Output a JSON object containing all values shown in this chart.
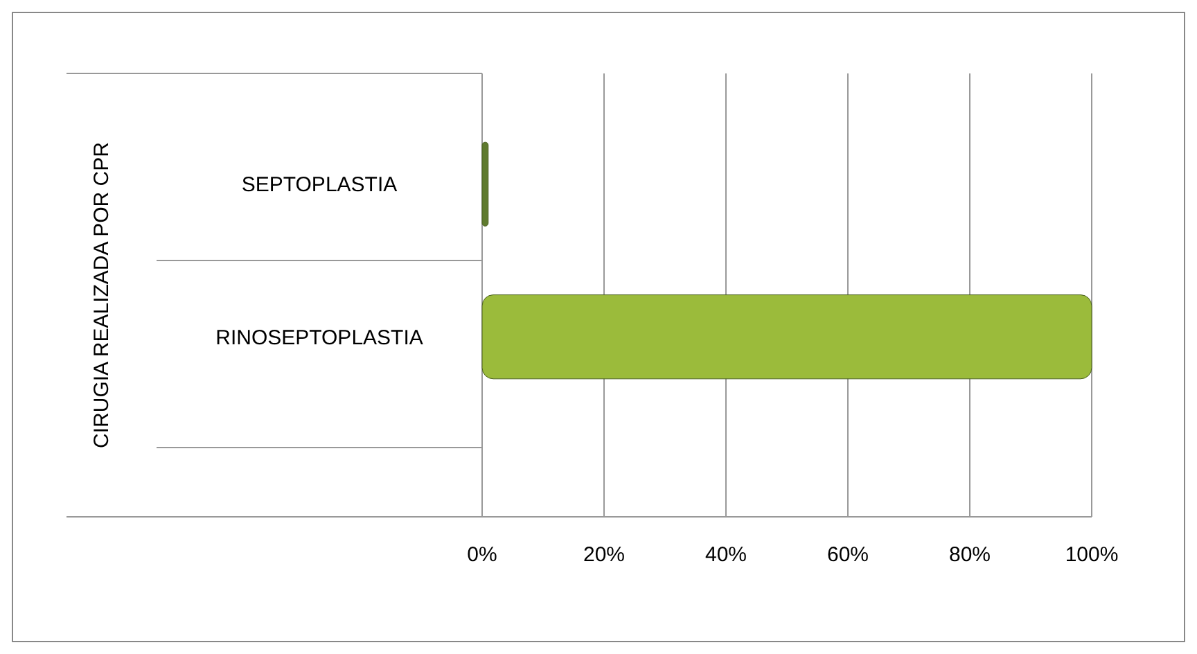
{
  "chart_data": {
    "type": "bar",
    "orientation": "horizontal",
    "ylabel": "CIRUGIA REALIZADA POR CPR",
    "categories": [
      "SEPTOPLASTIA",
      "RINOSEPTOPLASTIA"
    ],
    "values": [
      1,
      100
    ],
    "colors": [
      "#5f7a2e",
      "#9bbb3b"
    ],
    "xlim": [
      0,
      100
    ],
    "xticks": [
      {
        "value": 0,
        "label": "0%"
      },
      {
        "value": 20,
        "label": "20%"
      },
      {
        "value": 40,
        "label": "40%"
      },
      {
        "value": 60,
        "label": "60%"
      },
      {
        "value": 80,
        "label": "80%"
      },
      {
        "value": 100,
        "label": "100%"
      }
    ],
    "grid": "x"
  }
}
